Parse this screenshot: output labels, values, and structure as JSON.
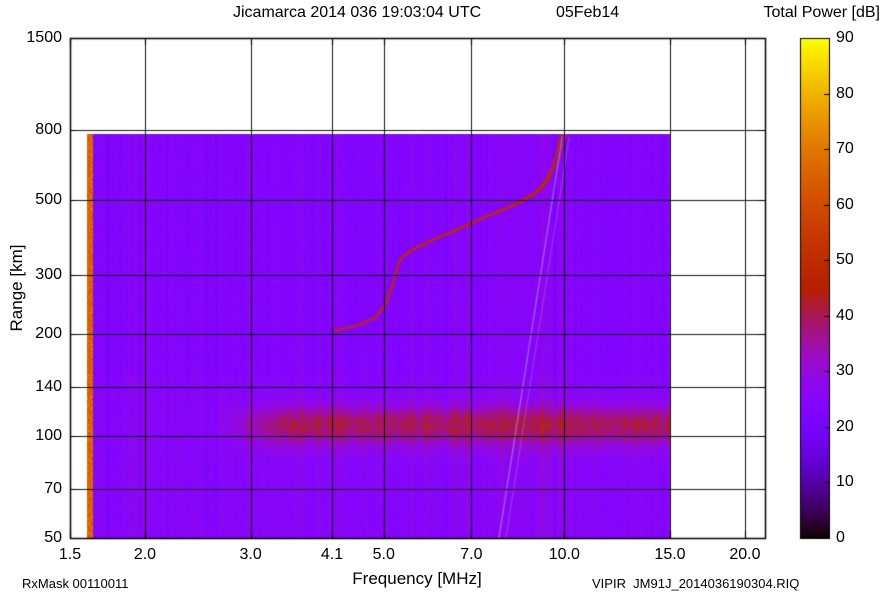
{
  "header": {
    "title": "Jicamarca 2014 036 19:03:04 UTC",
    "date": "05Feb14",
    "colorbar_title": "Total Power [dB]"
  },
  "footer": {
    "rx_mask": "RxMask 00110011",
    "file_name": "VIPIR  JM91J_2014036190304.RIQ"
  },
  "chart_data": {
    "type": "heatmap",
    "title": "Jicamarca 2014 036 19:03:04 UTC  05Feb14",
    "xlabel": "Frequency [MHz]",
    "ylabel": "Range [km]",
    "x_scale": "log",
    "y_scale": "log",
    "xlim": [
      1.5,
      21.6
    ],
    "ylim": [
      50,
      1500
    ],
    "x_ticks": [
      1.5,
      2.0,
      3.0,
      4.1,
      5.0,
      7.0,
      10.0,
      15.0,
      20.0
    ],
    "x_tick_labels": [
      "1.5",
      "2.0",
      "3.0",
      "4.1",
      "5.0",
      "7.0",
      "10.0",
      "15.0",
      "20.0"
    ],
    "y_ticks": [
      50,
      70,
      100,
      140,
      200,
      300,
      500,
      800,
      1500
    ],
    "y_tick_labels": [
      "50",
      "70",
      "100",
      "140",
      "200",
      "300",
      "500",
      "800",
      "1500"
    ],
    "grid": true,
    "colorbar": {
      "label": "Total Power [dB]",
      "min": 0,
      "max": 90,
      "ticks": [
        0,
        10,
        20,
        30,
        40,
        50,
        60,
        70,
        80,
        90
      ],
      "palette": "gnuplot-pm3d black-violet-red-orange-yellow"
    },
    "background_power_db": 24,
    "data_extent": {
      "f_min": 1.6,
      "f_max": 15.0,
      "range_min": 50,
      "range_max": 780
    },
    "features": [
      {
        "name": "transmitter-edge-stripe",
        "f_min": 1.6,
        "f_max": 1.64,
        "power_db": 64
      },
      {
        "name": "e-region-band",
        "peak_range_km": 108,
        "range_km": [
          90,
          140
        ],
        "f_range": [
          2.6,
          15.0
        ],
        "peak_power_db_above_bg": 16
      },
      {
        "name": "f-layer-trace",
        "power_db": 50,
        "points": [
          [
            4.15,
            205
          ],
          [
            4.5,
            212
          ],
          [
            4.85,
            224
          ],
          [
            5.05,
            248
          ],
          [
            5.2,
            288
          ],
          [
            5.32,
            332
          ],
          [
            5.55,
            354
          ],
          [
            5.85,
            370
          ],
          [
            6.2,
            388
          ],
          [
            6.6,
            406
          ],
          [
            7.0,
            426
          ],
          [
            7.4,
            446
          ],
          [
            7.8,
            463
          ],
          [
            8.2,
            481
          ],
          [
            8.6,
            502
          ],
          [
            9.0,
            530
          ],
          [
            9.25,
            560
          ],
          [
            9.45,
            598
          ],
          [
            9.6,
            638
          ],
          [
            9.72,
            688
          ],
          [
            9.82,
            742
          ],
          [
            9.88,
            780
          ]
        ]
      },
      {
        "name": "oblique-echo",
        "power_db": 32,
        "endpoints": [
          [
            7.78,
            50
          ],
          [
            9.92,
            765
          ]
        ]
      }
    ]
  }
}
